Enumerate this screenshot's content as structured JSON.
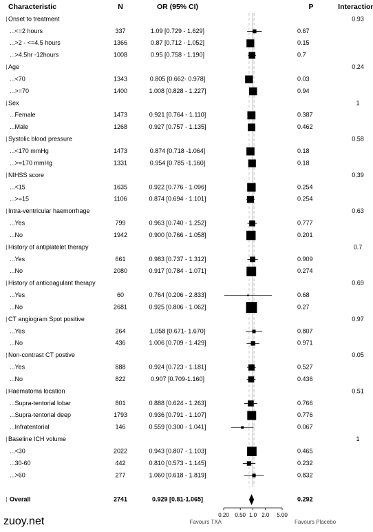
{
  "chart_data": {
    "type": "forest",
    "headers": {
      "characteristic": "Characteristic",
      "n": "N",
      "or": "OR (95% CI)",
      "p": "P",
      "interaction": "Interaction"
    },
    "groups": [
      {
        "label": "Onset to treatment",
        "interaction": 0.93,
        "rows": [
          {
            "label": "...<=2 hours",
            "n": 337,
            "or_ci": "1.09 [0.729 - 1.629]",
            "or": 1.09,
            "lo": 0.729,
            "hi": 1.629,
            "p": 0.67
          },
          {
            "label": "...>2 - <=4.5 hours",
            "n": 1366,
            "or_ci": "0.87 [0.712 - 1.052]",
            "or": 0.87,
            "lo": 0.712,
            "hi": 1.052,
            "p": 0.15
          },
          {
            "label": "...>4.5hr -12hours",
            "n": 1008,
            "or_ci": "0.95 [0.758 - 1.190]",
            "or": 0.95,
            "lo": 0.758,
            "hi": 1.19,
            "p": 0.7
          }
        ]
      },
      {
        "label": "Age",
        "interaction": 0.24,
        "rows": [
          {
            "label": "...<70",
            "n": 1343,
            "or_ci": "0.805 [0.662- 0.978]",
            "or": 0.805,
            "lo": 0.662,
            "hi": 0.978,
            "p": 0.03
          },
          {
            "label": "...>=70",
            "n": 1400,
            "or_ci": "1.008 [0.828 - 1.227]",
            "or": 1.008,
            "lo": 0.828,
            "hi": 1.227,
            "p": 0.94
          }
        ]
      },
      {
        "label": "Sex",
        "interaction": 1,
        "rows": [
          {
            "label": "...Female",
            "n": 1473,
            "or_ci": "0.921 [0.764 - 1.110]",
            "or": 0.921,
            "lo": 0.764,
            "hi": 1.11,
            "p": 0.387
          },
          {
            "label": "...Male",
            "n": 1268,
            "or_ci": "0.927 [0.757 - 1.135]",
            "or": 0.927,
            "lo": 0.757,
            "hi": 1.135,
            "p": 0.462
          }
        ]
      },
      {
        "label": "Systolic blood pressure",
        "interaction": 0.58,
        "rows": [
          {
            "label": "...<170 mmHg",
            "n": 1473,
            "or_ci": "0.874 [0.718 -1.064]",
            "or": 0.874,
            "lo": 0.718,
            "hi": 1.064,
            "p": 0.18
          },
          {
            "label": "...>=170 mmHg",
            "n": 1331,
            "or_ci": "0.954 [0.785 -1.160]",
            "or": 0.954,
            "lo": 0.785,
            "hi": 1.16,
            "p": 0.18
          }
        ]
      },
      {
        "label": "NIHSS score",
        "interaction": 0.39,
        "rows": [
          {
            "label": "...<15",
            "n": 1635,
            "or_ci": "0.922 [0.776 - 1.096]",
            "or": 0.922,
            "lo": 0.776,
            "hi": 1.096,
            "p": 0.254
          },
          {
            "label": "...>=15",
            "n": 1106,
            "or_ci": "0.874 [0.694 - 1.101]",
            "or": 0.874,
            "lo": 0.694,
            "hi": 1.101,
            "p": 0.254
          }
        ]
      },
      {
        "label": "Intra-ventricular haemorrhage",
        "interaction": 0.63,
        "rows": [
          {
            "label": "...Yes",
            "n": 799,
            "or_ci": "0.963 [0.740 - 1.252]",
            "or": 0.963,
            "lo": 0.74,
            "hi": 1.252,
            "p": 0.777
          },
          {
            "label": "...No",
            "n": 1942,
            "or_ci": "0.900 [0.766 - 1.058]",
            "or": 0.9,
            "lo": 0.766,
            "hi": 1.058,
            "p": 0.201
          }
        ]
      },
      {
        "label": "History of antiplatelet therapy",
        "interaction": 0.7,
        "rows": [
          {
            "label": "...Yes",
            "n": 661,
            "or_ci": "0.983 [0.737 - 1.312]",
            "or": 0.983,
            "lo": 0.737,
            "hi": 1.312,
            "p": 0.909
          },
          {
            "label": "...No",
            "n": 2080,
            "or_ci": "0.917 [0.784 - 1.071]",
            "or": 0.917,
            "lo": 0.784,
            "hi": 1.071,
            "p": 0.274
          }
        ]
      },
      {
        "label": "History of anticoagulant therapy",
        "interaction": 0.69,
        "rows": [
          {
            "label": "...Yes",
            "n": 60,
            "or_ci": "0.764 [0.206 - 2.833]",
            "or": 0.764,
            "lo": 0.206,
            "hi": 2.833,
            "p": 0.68
          },
          {
            "label": "...No",
            "n": 2681,
            "or_ci": "0.925 [0.806 - 1.062]",
            "or": 0.925,
            "lo": 0.806,
            "hi": 1.062,
            "p": 0.27
          }
        ]
      },
      {
        "label": "CT angiogram Spot positive",
        "interaction": 0.97,
        "rows": [
          {
            "label": "...Yes",
            "n": 264,
            "or_ci": "1.058 [0.671- 1.670]",
            "or": 1.058,
            "lo": 0.671,
            "hi": 1.67,
            "p": 0.807
          },
          {
            "label": "...No",
            "n": 436,
            "or_ci": "1.006 [0.709 - 1.429]",
            "or": 1.006,
            "lo": 0.709,
            "hi": 1.429,
            "p": 0.971
          }
        ]
      },
      {
        "label": "Non-contrast CT postive",
        "interaction": 0.05,
        "rows": [
          {
            "label": "...Yes",
            "n": 888,
            "or_ci": "0.924 [0.723 - 1.181]",
            "or": 0.924,
            "lo": 0.723,
            "hi": 1.181,
            "p": 0.527
          },
          {
            "label": "...No",
            "n": 822,
            "or_ci": "0.907 [0.709-1.160]",
            "or": 0.907,
            "lo": 0.709,
            "hi": 1.16,
            "p": 0.436
          }
        ]
      },
      {
        "label": "Haematoma location",
        "interaction": 0.51,
        "rows": [
          {
            "label": "...Supra-tentorial lobar",
            "n": 801,
            "or_ci": "0.888 [0.624 - 1.263]",
            "or": 0.888,
            "lo": 0.624,
            "hi": 1.263,
            "p": 0.766
          },
          {
            "label": "...Supra-tentorial deep",
            "n": 1793,
            "or_ci": "0.936 [0.791 - 1.107]",
            "or": 0.936,
            "lo": 0.791,
            "hi": 1.107,
            "p": 0.776
          },
          {
            "label": "...Infratentorial",
            "n": 146,
            "or_ci": "0.559 [0.300 - 1.041]",
            "or": 0.559,
            "lo": 0.3,
            "hi": 1.041,
            "p": 0.067
          }
        ]
      },
      {
        "label": "Baseline ICH volume",
        "interaction": 1,
        "rows": [
          {
            "label": "...<30",
            "n": 2022,
            "or_ci": "0.943 [0.807 - 1.103]",
            "or": 0.943,
            "lo": 0.807,
            "hi": 1.103,
            "p": 0.465
          },
          {
            "label": "...30-60",
            "n": 442,
            "or_ci": "0.810 [0.573 - 1.145]",
            "or": 0.81,
            "lo": 0.573,
            "hi": 1.145,
            "p": 0.232
          },
          {
            "label": "...>60",
            "n": 277,
            "or_ci": "1.060 [0.618 - 1.819]",
            "or": 1.06,
            "lo": 0.618,
            "hi": 1.819,
            "p": 0.832
          }
        ]
      }
    ],
    "overall": {
      "label": "Overall",
      "n": 2741,
      "or_ci": "0.929 [0.81-1.065]",
      "or": 0.929,
      "lo": 0.81,
      "hi": 1.065,
      "p": 0.292
    },
    "xlim": [
      0.2,
      5
    ],
    "xticks": [
      {
        "value": 0.2,
        "label": "0.20"
      },
      {
        "value": 0.5,
        "label": "0.50"
      },
      {
        "value": 1,
        "label": "1.0"
      },
      {
        "value": 2,
        "label": "2.0"
      },
      {
        "value": 5,
        "label": "5.00"
      }
    ],
    "log_x": true,
    "reference": 1,
    "favours_left": "Favours TXA",
    "favours_right": "Favours Placebo"
  },
  "watermark": "zuoy.net"
}
